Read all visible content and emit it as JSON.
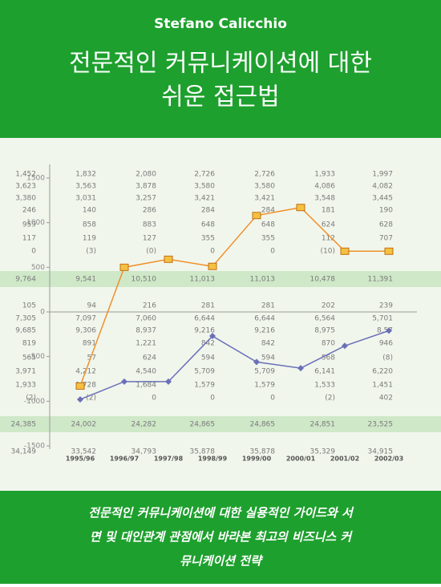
{
  "header": {
    "author": "Stefano Calicchio",
    "title_line1": "전문적인 커뮤니케이션에 대한",
    "title_line2": "쉬운 접근법"
  },
  "footer": {
    "subtitle_line1": "전문적인 커뮤니케이션에 대한 실용적인 가이드와 서",
    "subtitle_line2": "면 및 대인관계 관점에서 바라본 최고의 비즈니스 커",
    "subtitle_line3": "뮤니케이션 전략"
  },
  "table": {
    "rows": [
      [
        "1,452",
        "1,832",
        "2,080",
        "2,726",
        "2,726",
        "1,933",
        "1,997"
      ],
      [
        "3,623",
        "3,563",
        "3,878",
        "3,580",
        "3,580",
        "4,086",
        "4,082"
      ],
      [
        "3,380",
        "3,031",
        "3,257",
        "3,421",
        "3,421",
        "3,548",
        "3,445"
      ],
      [
        "246",
        "140",
        "286",
        "284",
        "284",
        "181",
        "190"
      ],
      [
        "959",
        "858",
        "883",
        "648",
        "648",
        "624",
        "628"
      ],
      [
        "117",
        "119",
        "127",
        "355",
        "355",
        "112",
        "707"
      ],
      [
        "0",
        "(3)",
        "(0)",
        "0",
        "0",
        "(10)",
        "3"
      ],
      [
        "9,764",
        "9,541",
        "10,510",
        "11,013",
        "11,013",
        "10,478",
        "11,391"
      ],
      [
        "105",
        "94",
        "216",
        "281",
        "281",
        "202",
        "239"
      ],
      [
        "7,305",
        "7,097",
        "7,060",
        "6,644",
        "6,644",
        "6,564",
        "5,701"
      ],
      [
        "9,685",
        "9,306",
        "8,937",
        "9,216",
        "9,216",
        "8,975",
        "8,57"
      ],
      [
        "819",
        "891",
        "1,221",
        "842",
        "842",
        "870",
        "946"
      ],
      [
        "565",
        "57",
        "624",
        "594",
        "594",
        "568",
        "(8)"
      ],
      [
        "3,971",
        "4,212",
        "4,540",
        "5,709",
        "5,709",
        "6,141",
        "6,220"
      ],
      [
        "1,933",
        "1,728",
        "1,684",
        "1,579",
        "1,579",
        "1,533",
        "1,451"
      ],
      [
        "(2)",
        "(2)",
        "0",
        "0",
        "0",
        "(2)",
        "402"
      ],
      [
        "24,385",
        "24,002",
        "24,282",
        "24,865",
        "24,865",
        "24,851",
        "23,525"
      ],
      [
        "34,149",
        "33,542",
        "34,793",
        "35,878",
        "35,878",
        "35,329",
        "34,915"
      ]
    ]
  },
  "chart_data": {
    "type": "line",
    "categories": [
      "1995/96",
      "1996/97",
      "1997/98",
      "1998/99",
      "1999/00",
      "2000/01",
      "2001/02",
      "2002/03"
    ],
    "series": [
      {
        "color": "#f0902a",
        "values": [
          -830,
          500,
          590,
          510,
          1080,
          1170,
          680,
          680
        ]
      },
      {
        "color": "#6a70b8",
        "values": [
          -980,
          -780,
          -780,
          -270,
          -560,
          -630,
          -380,
          -210
        ]
      }
    ],
    "ylim": [
      -1500,
      1500
    ],
    "yticks": [
      -1500,
      -1000,
      -500,
      0,
      500,
      1000,
      1500
    ]
  }
}
